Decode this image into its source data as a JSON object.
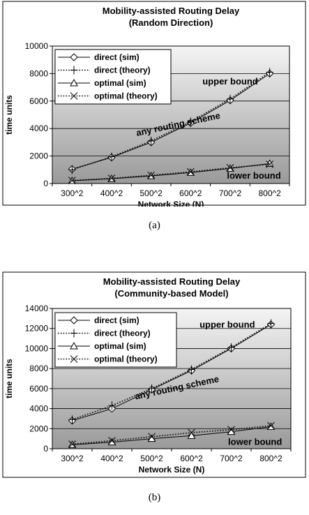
{
  "chart_data": [
    {
      "type": "line",
      "title": "Mobility-assisted Routing Delay",
      "subtitle": "(Random Direction)",
      "xlabel": "Network Size (N)",
      "ylabel": "time units",
      "categories": [
        "300^2",
        "400^2",
        "500^2",
        "600^2",
        "700^2",
        "800^2"
      ],
      "ylim": [
        0,
        10000
      ],
      "yticks": [
        0,
        2000,
        4000,
        6000,
        8000,
        10000
      ],
      "grid": true,
      "legend_position": "top-left",
      "series": [
        {
          "name": "direct (sim)",
          "marker": "diamond",
          "dash": "solid",
          "values": [
            1050,
            1900,
            3000,
            4400,
            6050,
            8000
          ]
        },
        {
          "name": "direct (theory)",
          "marker": "plus",
          "dash": "dotted",
          "values": [
            1000,
            1950,
            3100,
            4500,
            6150,
            8100
          ]
        },
        {
          "name": "optimal (sim)",
          "marker": "triangle",
          "dash": "solid",
          "values": [
            200,
            350,
            550,
            800,
            1100,
            1450
          ]
        },
        {
          "name": "optimal (theory)",
          "marker": "x",
          "dash": "dotted",
          "values": [
            220,
            380,
            600,
            850,
            1150,
            1400
          ]
        }
      ],
      "annotations": [
        {
          "text": "upper bound",
          "x": 4.5,
          "y": 7200,
          "rotate": 0
        },
        {
          "text": "any routing scheme",
          "x": 3.2,
          "y": 4100,
          "rotate": -12
        },
        {
          "text": "lower bound",
          "x": 5.1,
          "y": 350,
          "rotate": 0
        }
      ]
    },
    {
      "type": "line",
      "title": "Mobility-assisted Routing Delay",
      "subtitle": "(Community-based Model)",
      "xlabel": "Network Size (N)",
      "ylabel": "time units",
      "categories": [
        "300^2",
        "400^2",
        "500^2",
        "600^2",
        "700^2",
        "800^2"
      ],
      "ylim": [
        0,
        14000
      ],
      "yticks": [
        0,
        2000,
        4000,
        6000,
        8000,
        10000,
        12000,
        14000
      ],
      "grid": true,
      "legend_position": "top-left",
      "series": [
        {
          "name": "direct (sim)",
          "marker": "diamond",
          "dash": "solid",
          "values": [
            2800,
            4000,
            5900,
            7800,
            10000,
            12400
          ]
        },
        {
          "name": "direct (theory)",
          "marker": "plus",
          "dash": "dotted",
          "values": [
            2900,
            4300,
            6000,
            7900,
            10100,
            12500
          ]
        },
        {
          "name": "optimal (sim)",
          "marker": "triangle",
          "dash": "solid",
          "values": [
            400,
            650,
            1000,
            1300,
            1700,
            2200
          ]
        },
        {
          "name": "optimal (theory)",
          "marker": "x",
          "dash": "dotted",
          "values": [
            450,
            800,
            1200,
            1600,
            1900,
            2300
          ]
        }
      ],
      "annotations": [
        {
          "text": "upper bound",
          "x": 4.4,
          "y": 12100,
          "rotate": 0
        },
        {
          "text": "any routing scheme",
          "x": 3.15,
          "y": 5800,
          "rotate": -12
        },
        {
          "text": "lower bound",
          "x": 5.1,
          "y": 400,
          "rotate": 0
        }
      ]
    }
  ],
  "captions": {
    "a": "(a)",
    "b": "(b)"
  }
}
